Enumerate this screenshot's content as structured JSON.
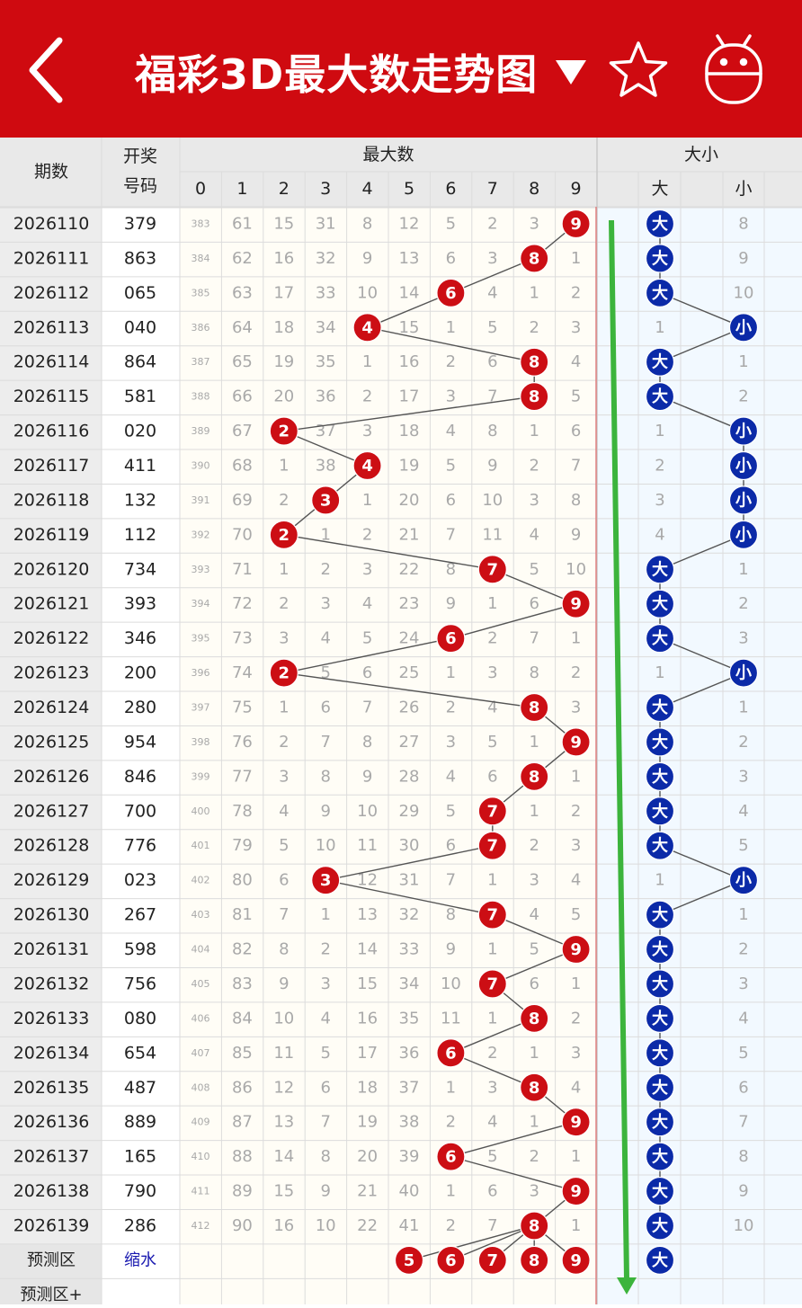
{
  "header": {
    "title": "福彩3D最大数走势图",
    "bg_color": "#cf0a10",
    "back_icon": "chevron-left-icon",
    "dropdown_icon": "caret-down-icon",
    "star_icon": "star-outline-icon",
    "robot_icon": "robot-icon"
  },
  "table": {
    "col_period": "期数",
    "col_draw_line1": "开奖",
    "col_draw_line2": "号码",
    "group_max": "最大数",
    "group_size": "大小",
    "digits": [
      "0",
      "1",
      "2",
      "3",
      "4",
      "5",
      "6",
      "7",
      "8",
      "9"
    ],
    "size_big": "大",
    "size_small": "小",
    "colors": {
      "red_ball": "#cc0e14",
      "blue_ball": "#0b2aa8",
      "trend_line": "#555555",
      "green_arrow": "#3cb43c"
    }
  },
  "rows": [
    {
      "period": "2026110",
      "draw": "379",
      "missing": [
        "383",
        "61",
        "15",
        "31",
        "8",
        "12",
        "5",
        "2",
        "3"
      ],
      "max": 9,
      "size": "大",
      "big_miss": "",
      "small_miss": "8"
    },
    {
      "period": "2026111",
      "draw": "863",
      "missing": [
        "384",
        "62",
        "16",
        "32",
        "9",
        "13",
        "6",
        "3",
        "",
        "1"
      ],
      "max": 8,
      "size": "大",
      "big_miss": "",
      "small_miss": "9"
    },
    {
      "period": "2026112",
      "draw": "065",
      "missing": [
        "385",
        "63",
        "17",
        "33",
        "10",
        "14",
        "",
        "4",
        "1",
        "2"
      ],
      "max": 6,
      "size": "大",
      "big_miss": "",
      "small_miss": "10"
    },
    {
      "period": "2026113",
      "draw": "040",
      "missing": [
        "386",
        "64",
        "18",
        "34",
        "",
        "15",
        "1",
        "5",
        "2",
        "3"
      ],
      "max": 4,
      "size": "小",
      "big_miss": "1",
      "small_miss": ""
    },
    {
      "period": "2026114",
      "draw": "864",
      "missing": [
        "387",
        "65",
        "19",
        "35",
        "1",
        "16",
        "2",
        "6",
        "",
        "4"
      ],
      "max": 8,
      "size": "大",
      "big_miss": "",
      "small_miss": "1"
    },
    {
      "period": "2026115",
      "draw": "581",
      "missing": [
        "388",
        "66",
        "20",
        "36",
        "2",
        "17",
        "3",
        "7",
        "",
        "5"
      ],
      "max": 8,
      "size": "大",
      "big_miss": "",
      "small_miss": "2"
    },
    {
      "period": "2026116",
      "draw": "020",
      "missing": [
        "389",
        "67",
        "",
        "37",
        "3",
        "18",
        "4",
        "8",
        "1",
        "6"
      ],
      "max": 2,
      "size": "小",
      "big_miss": "1",
      "small_miss": ""
    },
    {
      "period": "2026117",
      "draw": "411",
      "missing": [
        "390",
        "68",
        "1",
        "38",
        "",
        "19",
        "5",
        "9",
        "2",
        "7"
      ],
      "max": 4,
      "size": "小",
      "big_miss": "2",
      "small_miss": ""
    },
    {
      "period": "2026118",
      "draw": "132",
      "missing": [
        "391",
        "69",
        "2",
        "",
        "1",
        "20",
        "6",
        "10",
        "3",
        "8"
      ],
      "max": 3,
      "size": "小",
      "big_miss": "3",
      "small_miss": ""
    },
    {
      "period": "2026119",
      "draw": "112",
      "missing": [
        "392",
        "70",
        "",
        "1",
        "2",
        "21",
        "7",
        "11",
        "4",
        "9"
      ],
      "max": 2,
      "size": "小",
      "big_miss": "4",
      "small_miss": ""
    },
    {
      "period": "2026120",
      "draw": "734",
      "missing": [
        "393",
        "71",
        "1",
        "2",
        "3",
        "22",
        "8",
        "",
        "5",
        "10"
      ],
      "max": 7,
      "size": "大",
      "big_miss": "",
      "small_miss": "1"
    },
    {
      "period": "2026121",
      "draw": "393",
      "missing": [
        "394",
        "72",
        "2",
        "3",
        "4",
        "23",
        "9",
        "1",
        "6"
      ],
      "max": 9,
      "size": "大",
      "big_miss": "",
      "small_miss": "2"
    },
    {
      "period": "2026122",
      "draw": "346",
      "missing": [
        "395",
        "73",
        "3",
        "4",
        "5",
        "24",
        "",
        "2",
        "7",
        "1"
      ],
      "max": 6,
      "size": "大",
      "big_miss": "",
      "small_miss": "3"
    },
    {
      "period": "2026123",
      "draw": "200",
      "missing": [
        "396",
        "74",
        "",
        "5",
        "6",
        "25",
        "1",
        "3",
        "8",
        "2"
      ],
      "max": 2,
      "size": "小",
      "big_miss": "1",
      "small_miss": ""
    },
    {
      "period": "2026124",
      "draw": "280",
      "missing": [
        "397",
        "75",
        "1",
        "6",
        "7",
        "26",
        "2",
        "4",
        "",
        "3"
      ],
      "max": 8,
      "size": "大",
      "big_miss": "",
      "small_miss": "1"
    },
    {
      "period": "2026125",
      "draw": "954",
      "missing": [
        "398",
        "76",
        "2",
        "7",
        "8",
        "27",
        "3",
        "5",
        "1"
      ],
      "max": 9,
      "size": "大",
      "big_miss": "",
      "small_miss": "2"
    },
    {
      "period": "2026126",
      "draw": "846",
      "missing": [
        "399",
        "77",
        "3",
        "8",
        "9",
        "28",
        "4",
        "6",
        "",
        "1"
      ],
      "max": 8,
      "size": "大",
      "big_miss": "",
      "small_miss": "3"
    },
    {
      "period": "2026127",
      "draw": "700",
      "missing": [
        "400",
        "78",
        "4",
        "9",
        "10",
        "29",
        "5",
        "",
        "1",
        "2"
      ],
      "max": 7,
      "size": "大",
      "big_miss": "",
      "small_miss": "4"
    },
    {
      "period": "2026128",
      "draw": "776",
      "missing": [
        "401",
        "79",
        "5",
        "10",
        "11",
        "30",
        "6",
        "",
        "2",
        "3"
      ],
      "max": 7,
      "size": "大",
      "big_miss": "",
      "small_miss": "5"
    },
    {
      "period": "2026129",
      "draw": "023",
      "missing": [
        "402",
        "80",
        "6",
        "",
        "12",
        "31",
        "7",
        "1",
        "3",
        "4"
      ],
      "max": 3,
      "size": "小",
      "big_miss": "1",
      "small_miss": ""
    },
    {
      "period": "2026130",
      "draw": "267",
      "missing": [
        "403",
        "81",
        "7",
        "1",
        "13",
        "32",
        "8",
        "",
        "4",
        "5"
      ],
      "max": 7,
      "size": "大",
      "big_miss": "",
      "small_miss": "1"
    },
    {
      "period": "2026131",
      "draw": "598",
      "missing": [
        "404",
        "82",
        "8",
        "2",
        "14",
        "33",
        "9",
        "1",
        "5"
      ],
      "max": 9,
      "size": "大",
      "big_miss": "",
      "small_miss": "2"
    },
    {
      "period": "2026132",
      "draw": "756",
      "missing": [
        "405",
        "83",
        "9",
        "3",
        "15",
        "34",
        "10",
        "",
        "6",
        "1"
      ],
      "max": 7,
      "size": "大",
      "big_miss": "",
      "small_miss": "3"
    },
    {
      "period": "2026133",
      "draw": "080",
      "missing": [
        "406",
        "84",
        "10",
        "4",
        "16",
        "35",
        "11",
        "1",
        "",
        "2"
      ],
      "max": 8,
      "size": "大",
      "big_miss": "",
      "small_miss": "4"
    },
    {
      "period": "2026134",
      "draw": "654",
      "missing": [
        "407",
        "85",
        "11",
        "5",
        "17",
        "36",
        "",
        "2",
        "1",
        "3"
      ],
      "max": 6,
      "size": "大",
      "big_miss": "",
      "small_miss": "5"
    },
    {
      "period": "2026135",
      "draw": "487",
      "missing": [
        "408",
        "86",
        "12",
        "6",
        "18",
        "37",
        "1",
        "3",
        "",
        "4"
      ],
      "max": 8,
      "size": "大",
      "big_miss": "",
      "small_miss": "6"
    },
    {
      "period": "2026136",
      "draw": "889",
      "missing": [
        "409",
        "87",
        "13",
        "7",
        "19",
        "38",
        "2",
        "4",
        "1"
      ],
      "max": 9,
      "size": "大",
      "big_miss": "",
      "small_miss": "7"
    },
    {
      "period": "2026137",
      "draw": "165",
      "missing": [
        "410",
        "88",
        "14",
        "8",
        "20",
        "39",
        "",
        "5",
        "2",
        "1"
      ],
      "max": 6,
      "size": "大",
      "big_miss": "",
      "small_miss": "8"
    },
    {
      "period": "2026138",
      "draw": "790",
      "missing": [
        "411",
        "89",
        "15",
        "9",
        "21",
        "40",
        "1",
        "6",
        "3"
      ],
      "max": 9,
      "size": "大",
      "big_miss": "",
      "small_miss": "9"
    },
    {
      "period": "2026139",
      "draw": "286",
      "missing": [
        "412",
        "90",
        "16",
        "10",
        "22",
        "41",
        "2",
        "7",
        "",
        "1"
      ],
      "max": 8,
      "size": "大",
      "big_miss": "",
      "small_miss": "10"
    }
  ],
  "prediction": {
    "label": "预测区",
    "action": "缩水",
    "balls": [
      "5",
      "6",
      "7",
      "8",
      "9"
    ],
    "size": "大",
    "label2": "预测区+"
  }
}
